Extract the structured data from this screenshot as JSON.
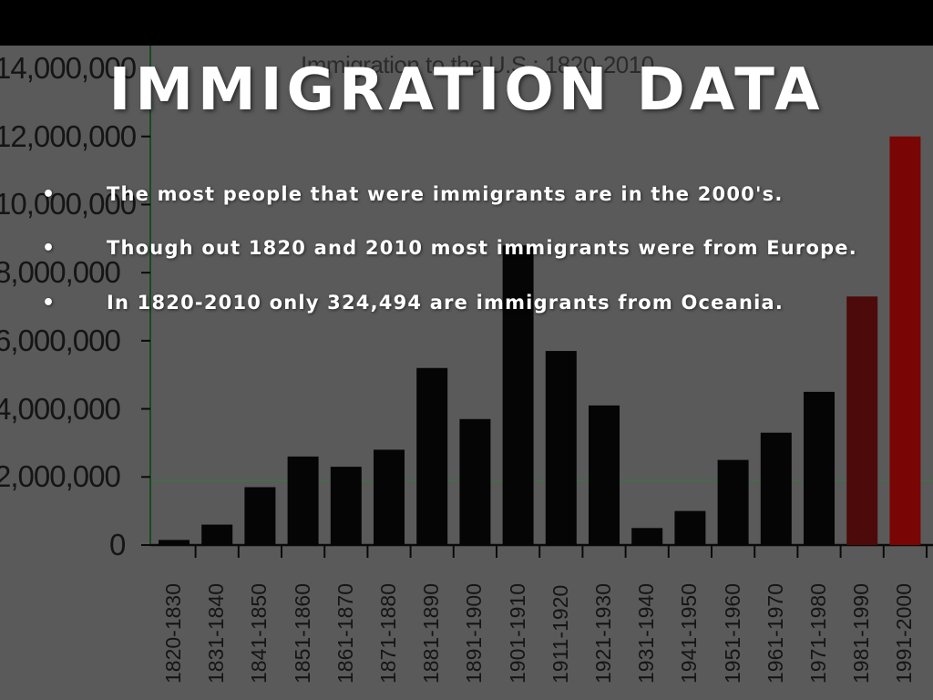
{
  "slide": {
    "title": "IMMIGRATION DATA",
    "bullets": [
      "The most people that were immigrants are in the 2000's.",
      "Though out 1820 and 2010 most immigrants were from Europe.",
      "In 1820-2010 only 324,494 are immigrants from Oceania."
    ],
    "bullet_symbol": "•"
  },
  "chart_data": {
    "type": "bar",
    "title": "Immigration to the U.S.: 1820-2010",
    "xlabel": "",
    "ylabel": "",
    "categories": [
      "1820-1830",
      "1831-1840",
      "1841-1850",
      "1851-1860",
      "1861-1870",
      "1871-1880",
      "1881-1890",
      "1891-1900",
      "1901-1910",
      "1911-1920",
      "1921-1930",
      "1931-1940",
      "1941-1950",
      "1951-1960",
      "1961-1970",
      "1971-1980",
      "1981-1990",
      "1991-2000"
    ],
    "values": [
      150000,
      600000,
      1700000,
      2600000,
      2300000,
      2800000,
      5200000,
      3700000,
      8800000,
      5700000,
      4100000,
      500000,
      1000000,
      2500000,
      3300000,
      4500000,
      7300000,
      12000000
    ],
    "bar_colors": [
      "#050505",
      "#050505",
      "#050505",
      "#050505",
      "#050505",
      "#050505",
      "#050505",
      "#050505",
      "#050505",
      "#050505",
      "#050505",
      "#050505",
      "#050505",
      "#050505",
      "#050505",
      "#050505",
      "#4d0a0a",
      "#7a0505"
    ],
    "ylim": [
      0,
      14000000
    ],
    "yticks": [
      0,
      2000000,
      4000000,
      6000000,
      8000000,
      10000000,
      12000000,
      14000000
    ],
    "ytick_labels": [
      "0",
      "2,000,000",
      "4,000,000",
      "6,000,000",
      "8,000,000",
      "10,000,000",
      "12,000,000",
      "14,000,000"
    ],
    "reference_line": 1900000,
    "grid": false,
    "legend": "none"
  }
}
